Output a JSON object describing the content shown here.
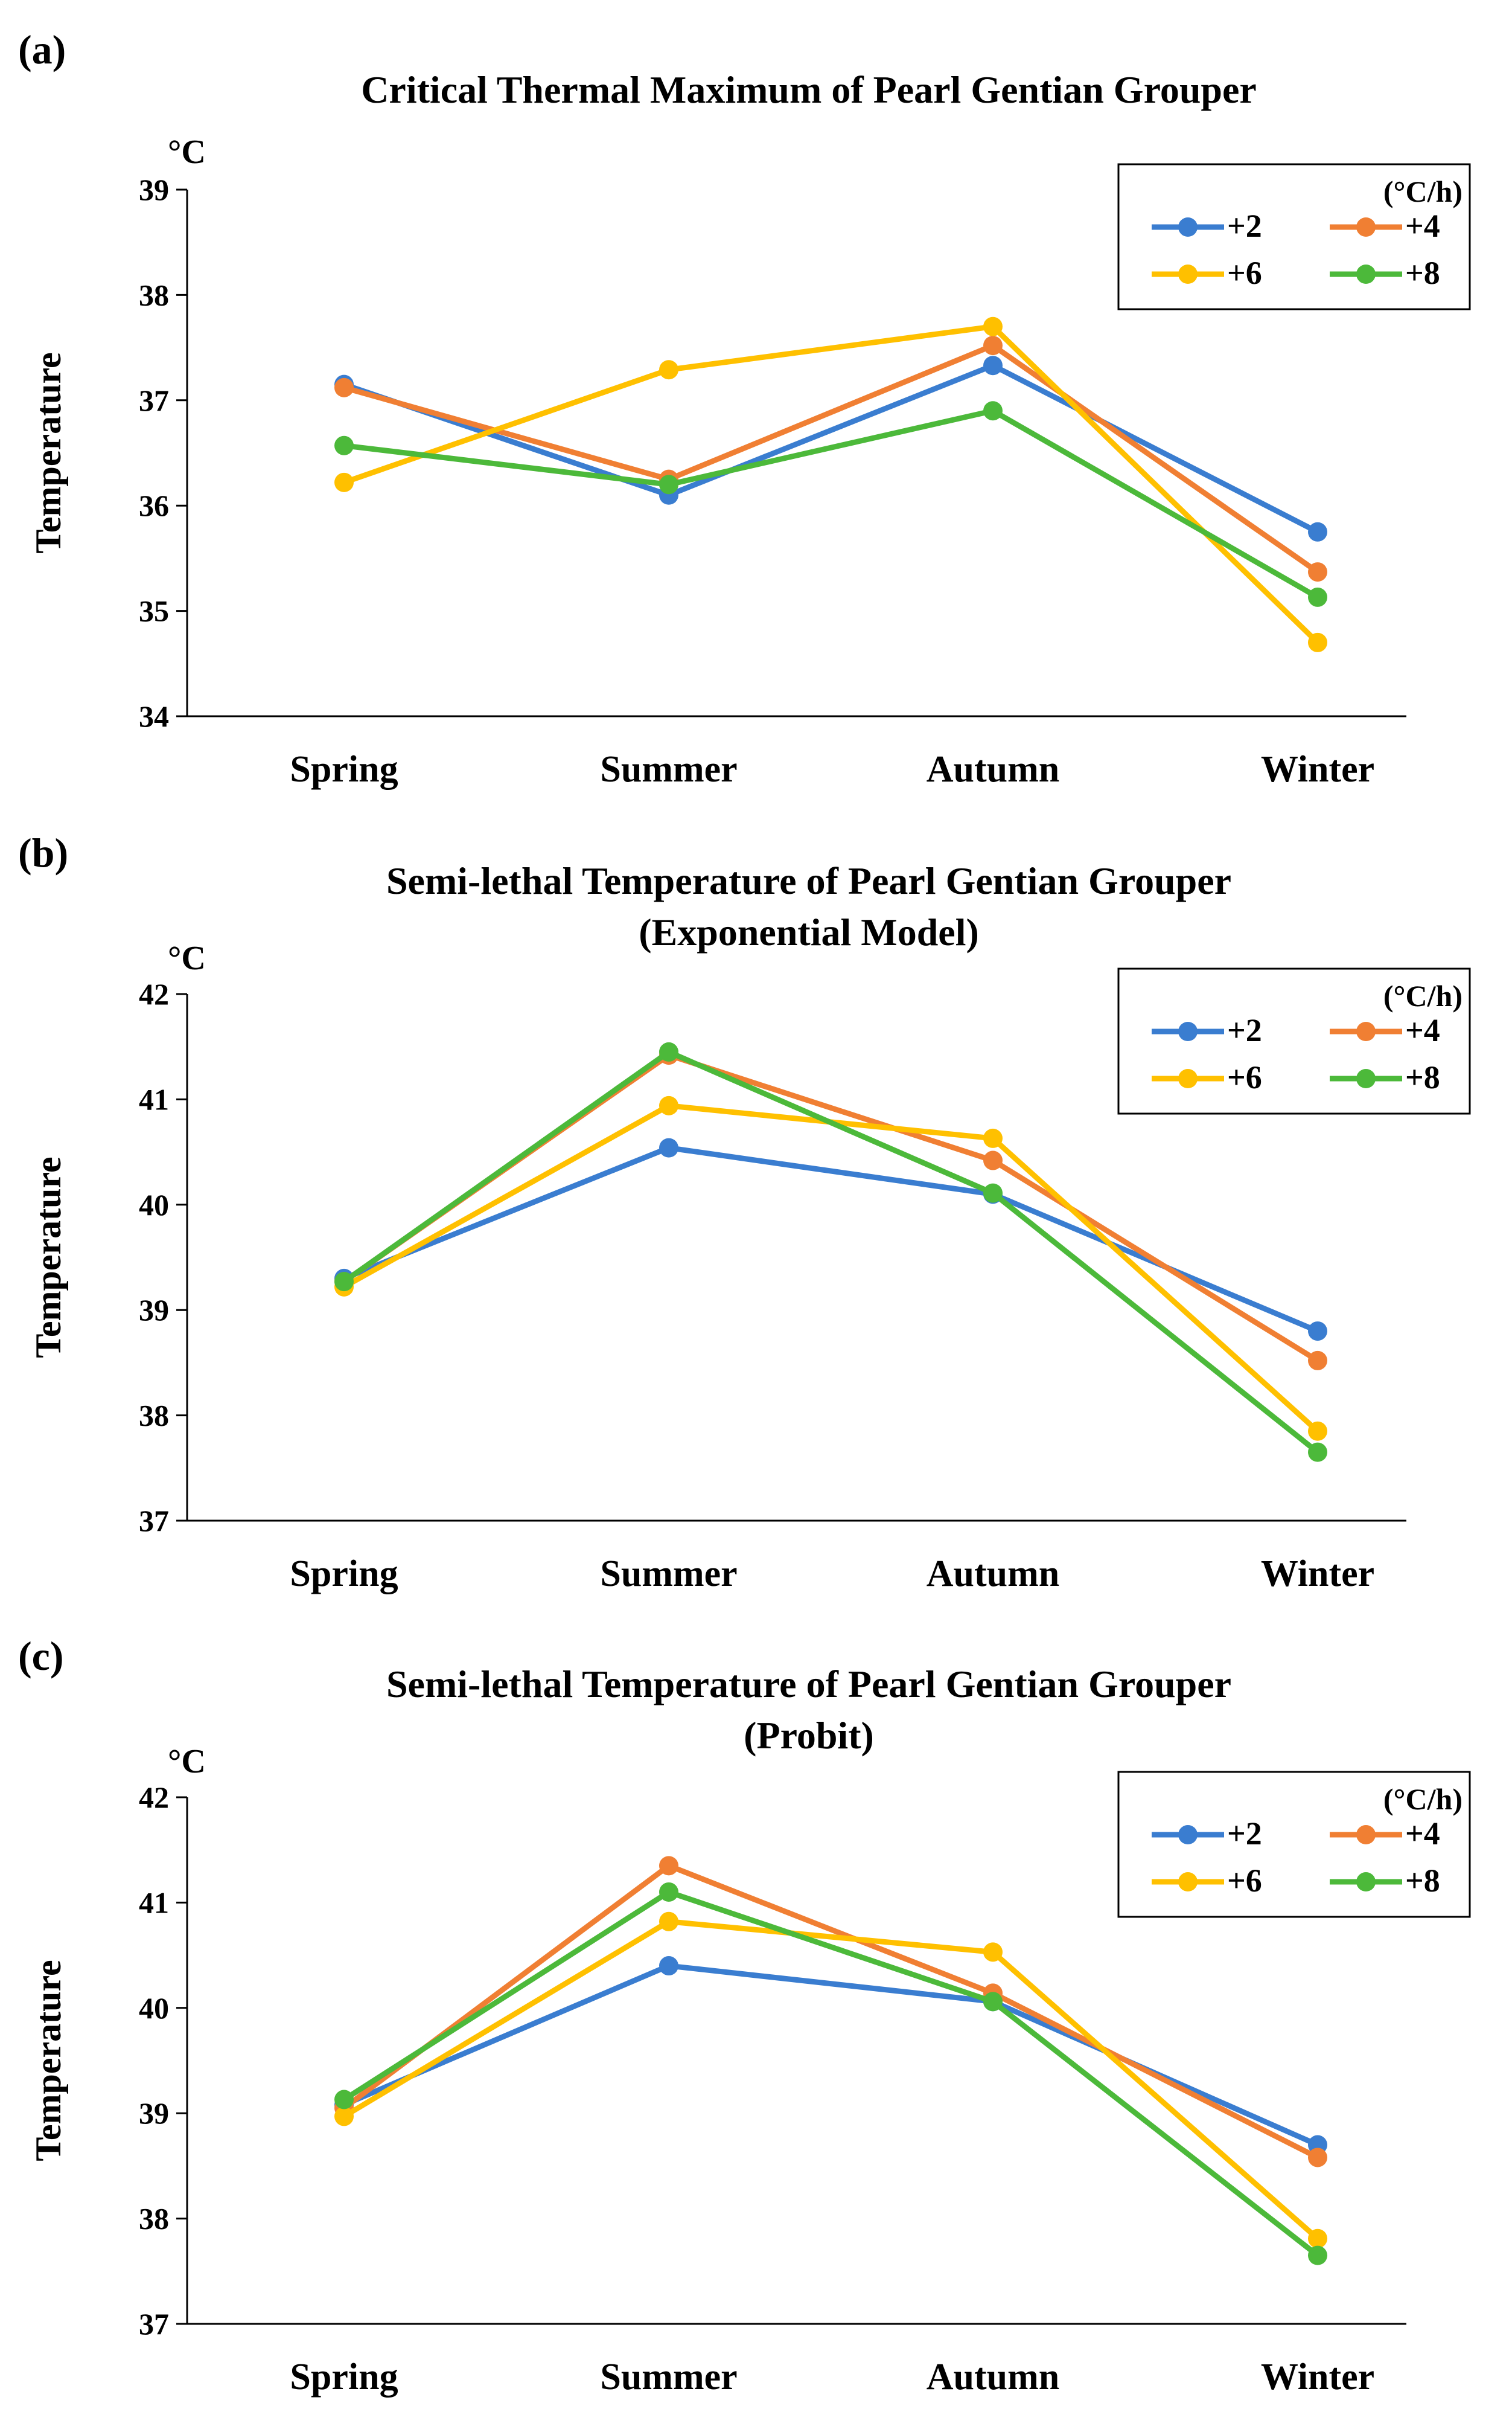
{
  "figure": {
    "panels": [
      {
        "label": "(a)",
        "title_lines": [
          "Critical Thermal Maximum of  Pearl Gentian  Grouper"
        ],
        "unit": "°C",
        "ylabel": "Temperature",
        "legend_unit": "(°C/h)"
      },
      {
        "label": "(b)",
        "title_lines": [
          "Semi-lethal Temperature of  Pearl Gentian Grouper",
          "(Exponential Model)"
        ],
        "unit": "°C",
        "ylabel": "Temperature",
        "legend_unit": "(°C/h)"
      },
      {
        "label": "(c)",
        "title_lines": [
          "Semi-lethal Temperature of  Pearl Gentian Grouper",
          "(Probit)"
        ],
        "unit": "°C",
        "ylabel": "Temperature",
        "legend_unit": "(°C/h)"
      }
    ]
  },
  "colors": {
    "+2": "#3A7DD0",
    "+4": "#F07F33",
    "+6": "#FFC000",
    "+8": "#4CB93A"
  },
  "chart_data": [
    {
      "type": "line",
      "title": "Critical Thermal Maximum of  Pearl Gentian  Grouper",
      "xlabel": "",
      "ylabel": "Temperature",
      "categories": [
        "Spring",
        "Summer",
        "Autumn",
        "Winter"
      ],
      "ylim": [
        34,
        39
      ],
      "yticks": [
        34,
        35,
        36,
        37,
        38,
        39
      ],
      "grid": false,
      "legend_position": "top-right",
      "legend_title": "(°C/h)",
      "series": [
        {
          "name": "+2",
          "values": [
            37.15,
            36.1,
            37.33,
            35.75
          ]
        },
        {
          "name": "+4",
          "values": [
            37.12,
            36.25,
            37.52,
            35.37
          ]
        },
        {
          "name": "+6",
          "values": [
            36.22,
            37.29,
            37.7,
            34.7
          ]
        },
        {
          "name": "+8",
          "values": [
            36.57,
            36.2,
            36.9,
            35.13
          ]
        }
      ]
    },
    {
      "type": "line",
      "title": "Semi-lethal Temperature of  Pearl Gentian Grouper (Exponential Model)",
      "xlabel": "",
      "ylabel": "Temperature",
      "categories": [
        "Spring",
        "Summer",
        "Autumn",
        "Winter"
      ],
      "ylim": [
        37,
        42
      ],
      "yticks": [
        37,
        38,
        39,
        40,
        41,
        42
      ],
      "grid": false,
      "legend_position": "top-right",
      "legend_title": "(°C/h)",
      "series": [
        {
          "name": "+2",
          "values": [
            39.3,
            40.54,
            40.1,
            38.8
          ]
        },
        {
          "name": "+4",
          "values": [
            39.27,
            41.42,
            40.42,
            38.52
          ]
        },
        {
          "name": "+6",
          "values": [
            39.22,
            40.94,
            40.63,
            37.85
          ]
        },
        {
          "name": "+8",
          "values": [
            39.27,
            41.45,
            40.11,
            37.65
          ]
        }
      ]
    },
    {
      "type": "line",
      "title": "Semi-lethal Temperature of  Pearl Gentian Grouper (Probit)",
      "xlabel": "",
      "ylabel": "Temperature",
      "categories": [
        "Spring",
        "Summer",
        "Autumn",
        "Winter"
      ],
      "ylim": [
        37,
        42
      ],
      "yticks": [
        37,
        38,
        39,
        40,
        41,
        42
      ],
      "grid": false,
      "legend_position": "top-right",
      "legend_title": "(°C/h)",
      "series": [
        {
          "name": "+2",
          "values": [
            39.08,
            40.4,
            40.06,
            38.7
          ]
        },
        {
          "name": "+4",
          "values": [
            39.05,
            41.35,
            40.14,
            38.58
          ]
        },
        {
          "name": "+6",
          "values": [
            38.97,
            40.82,
            40.53,
            37.81
          ]
        },
        {
          "name": "+8",
          "values": [
            39.13,
            41.1,
            40.06,
            37.65
          ]
        }
      ]
    }
  ]
}
